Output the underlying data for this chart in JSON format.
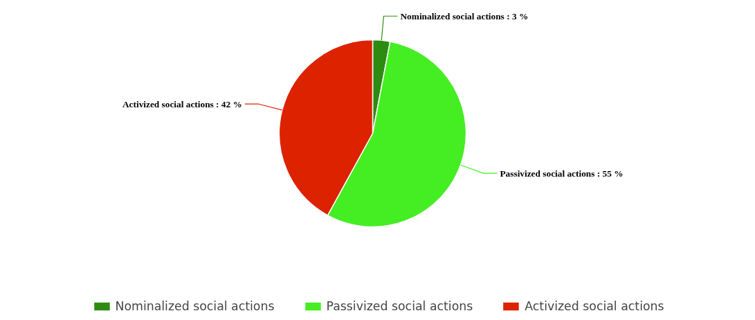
{
  "chart_data": {
    "type": "pie",
    "categories": [
      "Nominalized social actions",
      "Passivized social actions",
      "Activized social actions"
    ],
    "values": [
      3,
      55,
      42
    ],
    "colors": [
      "#2e8b12",
      "#44ee22",
      "#dd2200"
    ],
    "value_labels": [
      "Nominalized social actions : 3 %",
      "Passivized social actions : 55 %",
      "Activized social actions : 42 %"
    ],
    "legend": "bottom"
  }
}
